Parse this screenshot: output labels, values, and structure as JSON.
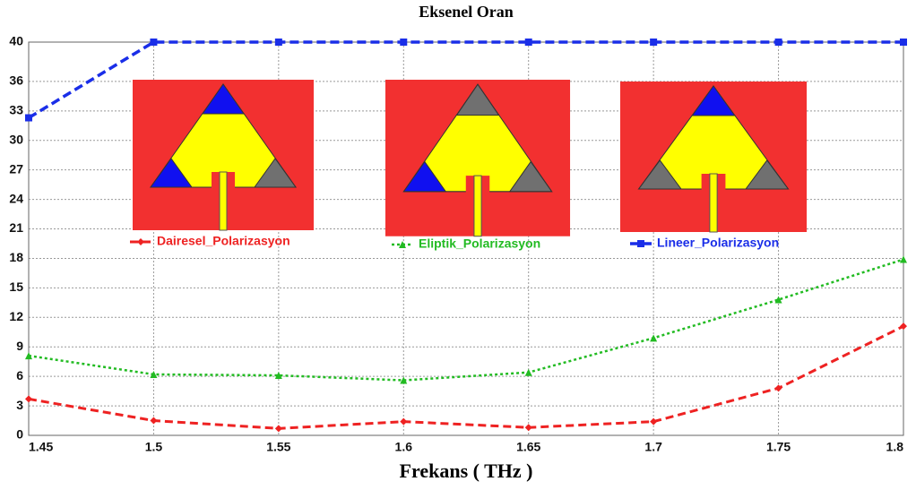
{
  "chart_data": {
    "type": "line",
    "title": "Eksenel Oran",
    "x_label": "Frekans ( THz )",
    "x": [
      1.45,
      1.5,
      1.55,
      1.6,
      1.65,
      1.7,
      1.75,
      1.8
    ],
    "series": [
      {
        "name": "Dairesel_Polarizasyon",
        "color": "#ee2222",
        "marker": "diamond",
        "values": [
          3.7,
          1.5,
          0.7,
          1.4,
          0.8,
          1.4,
          4.8,
          11.1
        ]
      },
      {
        "name": "Eliptik_Polarizasyon",
        "color": "#22bb22",
        "marker": "triangle",
        "values": [
          8.1,
          6.2,
          6.1,
          5.6,
          6.4,
          9.9,
          13.8,
          17.9
        ]
      },
      {
        "name": "Lineer_Polarizasyon",
        "color": "#1a2ee8",
        "marker": "square",
        "values": [
          32.3,
          40,
          40,
          40,
          40,
          40,
          40,
          40
        ]
      }
    ],
    "xlim": [
      1.45,
      1.8
    ],
    "xticks": [
      1.45,
      1.5,
      1.55,
      1.6,
      1.65,
      1.7,
      1.75,
      1.8
    ],
    "ylim": [
      0,
      40
    ],
    "yticks": [
      0,
      3,
      6,
      9,
      12,
      15,
      18,
      21,
      24,
      27,
      30,
      33,
      36,
      40
    ],
    "grid": true
  }
}
